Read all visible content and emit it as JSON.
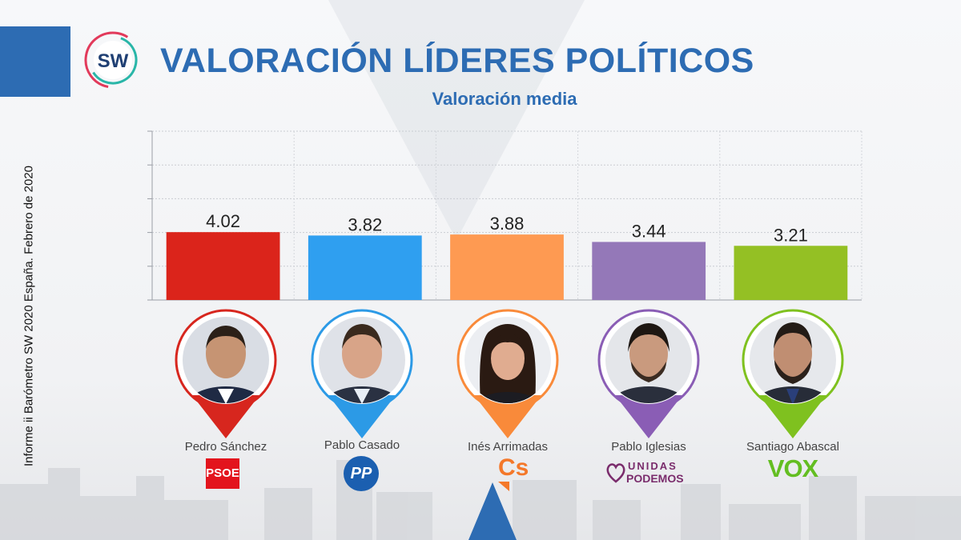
{
  "title": "VALORACIÓN LÍDERES POLÍTICOS",
  "subtitle": "Valoración media",
  "side_note": "Informe ii Barómetro SW 2020 España. Febrero de 2020",
  "logo_text": "SW",
  "chart_data": {
    "type": "bar",
    "title": "VALORACIÓN LÍDERES POLÍTICOS",
    "subtitle": "Valoración media",
    "categories": [
      "Pedro Sánchez",
      "Pablo Casado",
      "Inés Arrimadas",
      "Pablo Iglesias",
      "Santiago Abascal"
    ],
    "values": [
      4.02,
      3.82,
      3.88,
      3.44,
      3.21
    ],
    "value_labels": [
      "4.02",
      "3.82",
      "3.88",
      "3.44",
      "3.21"
    ],
    "colors": [
      "#db241b",
      "#2f9ff0",
      "#fe9a52",
      "#9478b8",
      "#94c024"
    ],
    "ylim": [
      0,
      10
    ],
    "grid": true,
    "xlabel": "",
    "ylabel": ""
  },
  "leaders": [
    {
      "name": "Pedro Sánchez",
      "party": "PSOE",
      "color": "#d7261e"
    },
    {
      "name": "Pablo Casado",
      "party": "PP",
      "color": "#2c9ae6"
    },
    {
      "name": "Inés Arrimadas",
      "party": "Cs",
      "color": "#f98a3a"
    },
    {
      "name": "Pablo Iglesias",
      "party_line1": "UNIDAS",
      "party_line2": "PODEMOS",
      "color": "#8a5db5"
    },
    {
      "name": "Santiago Abascal",
      "party": "VOX",
      "color": "#7fc11f"
    }
  ]
}
